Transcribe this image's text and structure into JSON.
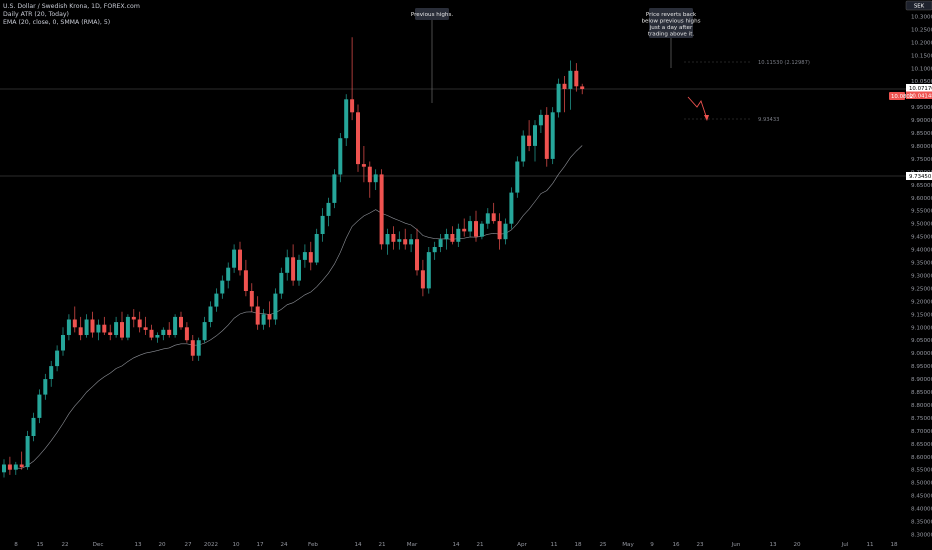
{
  "legend": {
    "symbol": "U.S. Dollar / Swedish Krona, 1D, FOREX.com",
    "atr": "Daily ATR (20, Today)",
    "ema": "EMA (20, close, 0, SMMA (RMA), 5)"
  },
  "currency_badge": "SEK",
  "callouts": {
    "previous_highs": "Previous highs.",
    "reverts_lines": [
      "Price reverts back",
      "below previous highs",
      "just a day after",
      "trading above it."
    ]
  },
  "level_labels": {
    "upper": "10.11530 (2.12987)",
    "lower": "9.93433"
  },
  "price_tags": {
    "top_a": "10.07170",
    "top_b": "10.04148",
    "left_red": "10.0802",
    "mid": "9.73450"
  },
  "colors": {
    "up": "#26a69a",
    "down": "#ef5350",
    "ema": "#b2b5be",
    "guide": "#555555",
    "arrow": "#ef5350"
  },
  "chart_data": {
    "type": "candlestick",
    "y_axis_labels": [
      "10.35000",
      "10.30000",
      "10.25000",
      "10.20000",
      "10.15000",
      "10.10000",
      "10.05000",
      "10.00000",
      "9.95000",
      "9.90000",
      "9.85000",
      "9.80000",
      "9.75000",
      "9.70000",
      "9.65000",
      "9.60000",
      "9.55000",
      "9.50000",
      "9.45000",
      "9.40000",
      "9.35000",
      "9.30000",
      "9.25000",
      "9.20000",
      "9.15000",
      "9.10000",
      "9.05000",
      "9.00000",
      "8.95000",
      "8.90000",
      "8.85000",
      "8.80000",
      "8.75000",
      "8.70000",
      "8.65000",
      "8.60000",
      "8.55000",
      "8.50000",
      "8.45000",
      "8.40000",
      "8.35000",
      "8.30000"
    ],
    "x_axis_labels": [
      "8",
      "15",
      "22",
      "Dec",
      "13",
      "20",
      "27",
      "2022",
      "10",
      "17",
      "24",
      "Feb",
      "14",
      "21",
      "Mar",
      "14",
      "21",
      "Apr",
      "11",
      "18",
      "25",
      "May",
      "9",
      "16",
      "23",
      "Jun",
      "13",
      "20",
      "Jul",
      "11",
      "18"
    ],
    "candles": [
      {
        "o": 8.54,
        "h": 8.59,
        "l": 8.52,
        "c": 8.57
      },
      {
        "o": 8.57,
        "h": 8.6,
        "l": 8.53,
        "c": 8.55
      },
      {
        "o": 8.55,
        "h": 8.58,
        "l": 8.53,
        "c": 8.57
      },
      {
        "o": 8.57,
        "h": 8.62,
        "l": 8.55,
        "c": 8.56
      },
      {
        "o": 8.56,
        "h": 8.7,
        "l": 8.55,
        "c": 8.68
      },
      {
        "o": 8.68,
        "h": 8.77,
        "l": 8.66,
        "c": 8.75
      },
      {
        "o": 8.75,
        "h": 8.86,
        "l": 8.73,
        "c": 8.84
      },
      {
        "o": 8.84,
        "h": 8.92,
        "l": 8.82,
        "c": 8.9
      },
      {
        "o": 8.9,
        "h": 8.97,
        "l": 8.87,
        "c": 8.95
      },
      {
        "o": 8.95,
        "h": 9.03,
        "l": 8.93,
        "c": 9.01
      },
      {
        "o": 9.01,
        "h": 9.1,
        "l": 8.99,
        "c": 9.07
      },
      {
        "o": 9.07,
        "h": 9.15,
        "l": 9.05,
        "c": 9.13
      },
      {
        "o": 9.13,
        "h": 9.18,
        "l": 9.08,
        "c": 9.1
      },
      {
        "o": 9.1,
        "h": 9.14,
        "l": 9.05,
        "c": 9.07
      },
      {
        "o": 9.07,
        "h": 9.15,
        "l": 9.06,
        "c": 9.13
      },
      {
        "o": 9.13,
        "h": 9.16,
        "l": 9.06,
        "c": 9.08
      },
      {
        "o": 9.08,
        "h": 9.13,
        "l": 9.05,
        "c": 9.11
      },
      {
        "o": 9.11,
        "h": 9.14,
        "l": 9.07,
        "c": 9.08
      },
      {
        "o": 9.08,
        "h": 9.11,
        "l": 9.05,
        "c": 9.07
      },
      {
        "o": 9.07,
        "h": 9.14,
        "l": 9.06,
        "c": 9.12
      },
      {
        "o": 9.12,
        "h": 9.16,
        "l": 9.05,
        "c": 9.06
      },
      {
        "o": 9.06,
        "h": 9.15,
        "l": 9.05,
        "c": 9.14
      },
      {
        "o": 9.14,
        "h": 9.17,
        "l": 9.1,
        "c": 9.13
      },
      {
        "o": 9.13,
        "h": 9.16,
        "l": 9.08,
        "c": 9.1
      },
      {
        "o": 9.1,
        "h": 9.14,
        "l": 9.07,
        "c": 9.09
      },
      {
        "o": 9.09,
        "h": 9.11,
        "l": 9.05,
        "c": 9.06
      },
      {
        "o": 9.06,
        "h": 9.08,
        "l": 9.04,
        "c": 9.07
      },
      {
        "o": 9.07,
        "h": 9.1,
        "l": 9.05,
        "c": 9.09
      },
      {
        "o": 9.09,
        "h": 9.12,
        "l": 9.06,
        "c": 9.07
      },
      {
        "o": 9.07,
        "h": 9.15,
        "l": 9.06,
        "c": 9.14
      },
      {
        "o": 9.14,
        "h": 9.16,
        "l": 9.09,
        "c": 9.1
      },
      {
        "o": 9.1,
        "h": 9.12,
        "l": 9.04,
        "c": 9.05
      },
      {
        "o": 9.05,
        "h": 9.07,
        "l": 8.97,
        "c": 8.99
      },
      {
        "o": 8.99,
        "h": 9.06,
        "l": 8.97,
        "c": 9.05
      },
      {
        "o": 9.05,
        "h": 9.14,
        "l": 9.04,
        "c": 9.12
      },
      {
        "o": 9.12,
        "h": 9.2,
        "l": 9.1,
        "c": 9.18
      },
      {
        "o": 9.18,
        "h": 9.25,
        "l": 9.16,
        "c": 9.23
      },
      {
        "o": 9.23,
        "h": 9.3,
        "l": 9.21,
        "c": 9.28
      },
      {
        "o": 9.28,
        "h": 9.35,
        "l": 9.25,
        "c": 9.33
      },
      {
        "o": 9.33,
        "h": 9.42,
        "l": 9.31,
        "c": 9.4
      },
      {
        "o": 9.4,
        "h": 9.43,
        "l": 9.3,
        "c": 9.32
      },
      {
        "o": 9.32,
        "h": 9.36,
        "l": 9.22,
        "c": 9.24
      },
      {
        "o": 9.24,
        "h": 9.27,
        "l": 9.16,
        "c": 9.18
      },
      {
        "o": 9.18,
        "h": 9.22,
        "l": 9.09,
        "c": 9.11
      },
      {
        "o": 9.11,
        "h": 9.17,
        "l": 9.09,
        "c": 9.15
      },
      {
        "o": 9.15,
        "h": 9.2,
        "l": 9.1,
        "c": 9.13
      },
      {
        "o": 9.13,
        "h": 9.25,
        "l": 9.11,
        "c": 9.23
      },
      {
        "o": 9.23,
        "h": 9.33,
        "l": 9.21,
        "c": 9.31
      },
      {
        "o": 9.31,
        "h": 9.4,
        "l": 9.28,
        "c": 9.37
      },
      {
        "o": 9.37,
        "h": 9.42,
        "l": 9.26,
        "c": 9.28
      },
      {
        "o": 9.28,
        "h": 9.38,
        "l": 9.26,
        "c": 9.36
      },
      {
        "o": 9.36,
        "h": 9.42,
        "l": 9.33,
        "c": 9.39
      },
      {
        "o": 9.39,
        "h": 9.43,
        "l": 9.32,
        "c": 9.35
      },
      {
        "o": 9.35,
        "h": 9.48,
        "l": 9.34,
        "c": 9.46
      },
      {
        "o": 9.46,
        "h": 9.56,
        "l": 9.43,
        "c": 9.53
      },
      {
        "o": 9.53,
        "h": 9.6,
        "l": 9.49,
        "c": 9.58
      },
      {
        "o": 9.58,
        "h": 9.71,
        "l": 9.56,
        "c": 9.69
      },
      {
        "o": 9.69,
        "h": 9.85,
        "l": 9.66,
        "c": 9.83
      },
      {
        "o": 9.83,
        "h": 10.0,
        "l": 9.8,
        "c": 9.98
      },
      {
        "o": 9.98,
        "h": 10.22,
        "l": 9.9,
        "c": 9.93
      },
      {
        "o": 9.93,
        "h": 9.96,
        "l": 9.7,
        "c": 9.73
      },
      {
        "o": 9.73,
        "h": 9.8,
        "l": 9.66,
        "c": 9.72
      },
      {
        "o": 9.72,
        "h": 9.74,
        "l": 9.6,
        "c": 9.66
      },
      {
        "o": 9.66,
        "h": 9.71,
        "l": 9.63,
        "c": 9.69
      },
      {
        "o": 9.69,
        "h": 9.71,
        "l": 9.4,
        "c": 9.42
      },
      {
        "o": 9.42,
        "h": 9.48,
        "l": 9.38,
        "c": 9.46
      },
      {
        "o": 9.46,
        "h": 9.49,
        "l": 9.4,
        "c": 9.43
      },
      {
        "o": 9.43,
        "h": 9.47,
        "l": 9.4,
        "c": 9.44
      },
      {
        "o": 9.44,
        "h": 9.48,
        "l": 9.4,
        "c": 9.42
      },
      {
        "o": 9.42,
        "h": 9.46,
        "l": 9.39,
        "c": 9.44
      },
      {
        "o": 9.44,
        "h": 9.48,
        "l": 9.3,
        "c": 9.32
      },
      {
        "o": 9.32,
        "h": 9.36,
        "l": 9.22,
        "c": 9.25
      },
      {
        "o": 9.25,
        "h": 9.41,
        "l": 9.23,
        "c": 9.39
      },
      {
        "o": 9.39,
        "h": 9.43,
        "l": 9.36,
        "c": 9.41
      },
      {
        "o": 9.41,
        "h": 9.46,
        "l": 9.39,
        "c": 9.44
      },
      {
        "o": 9.44,
        "h": 9.48,
        "l": 9.4,
        "c": 9.46
      },
      {
        "o": 9.46,
        "h": 9.49,
        "l": 9.42,
        "c": 9.43
      },
      {
        "o": 9.43,
        "h": 9.5,
        "l": 9.41,
        "c": 9.48
      },
      {
        "o": 9.48,
        "h": 9.52,
        "l": 9.45,
        "c": 9.47
      },
      {
        "o": 9.47,
        "h": 9.53,
        "l": 9.45,
        "c": 9.51
      },
      {
        "o": 9.51,
        "h": 9.55,
        "l": 9.43,
        "c": 9.45
      },
      {
        "o": 9.45,
        "h": 9.51,
        "l": 9.44,
        "c": 9.5
      },
      {
        "o": 9.5,
        "h": 9.56,
        "l": 9.48,
        "c": 9.54
      },
      {
        "o": 9.54,
        "h": 9.58,
        "l": 9.5,
        "c": 9.51
      },
      {
        "o": 9.51,
        "h": 9.54,
        "l": 9.4,
        "c": 9.44
      },
      {
        "o": 9.44,
        "h": 9.52,
        "l": 9.42,
        "c": 9.5
      },
      {
        "o": 9.5,
        "h": 9.64,
        "l": 9.48,
        "c": 9.62
      },
      {
        "o": 9.62,
        "h": 9.76,
        "l": 9.6,
        "c": 9.74
      },
      {
        "o": 9.74,
        "h": 9.86,
        "l": 9.72,
        "c": 9.84
      },
      {
        "o": 9.84,
        "h": 9.9,
        "l": 9.78,
        "c": 9.8
      },
      {
        "o": 9.8,
        "h": 9.9,
        "l": 9.74,
        "c": 9.88
      },
      {
        "o": 9.88,
        "h": 9.94,
        "l": 9.85,
        "c": 9.92
      },
      {
        "o": 9.92,
        "h": 9.95,
        "l": 9.72,
        "c": 9.75
      },
      {
        "o": 9.75,
        "h": 9.95,
        "l": 9.73,
        "c": 9.93
      },
      {
        "o": 9.93,
        "h": 10.06,
        "l": 9.91,
        "c": 10.04
      },
      {
        "o": 10.04,
        "h": 10.07,
        "l": 9.93,
        "c": 10.02
      },
      {
        "o": 10.02,
        "h": 10.13,
        "l": 9.94,
        "c": 10.09
      },
      {
        "o": 10.09,
        "h": 10.12,
        "l": 10.01,
        "c": 10.03
      },
      {
        "o": 10.03,
        "h": 10.04,
        "l": 10.0,
        "c": 10.02
      }
    ]
  }
}
